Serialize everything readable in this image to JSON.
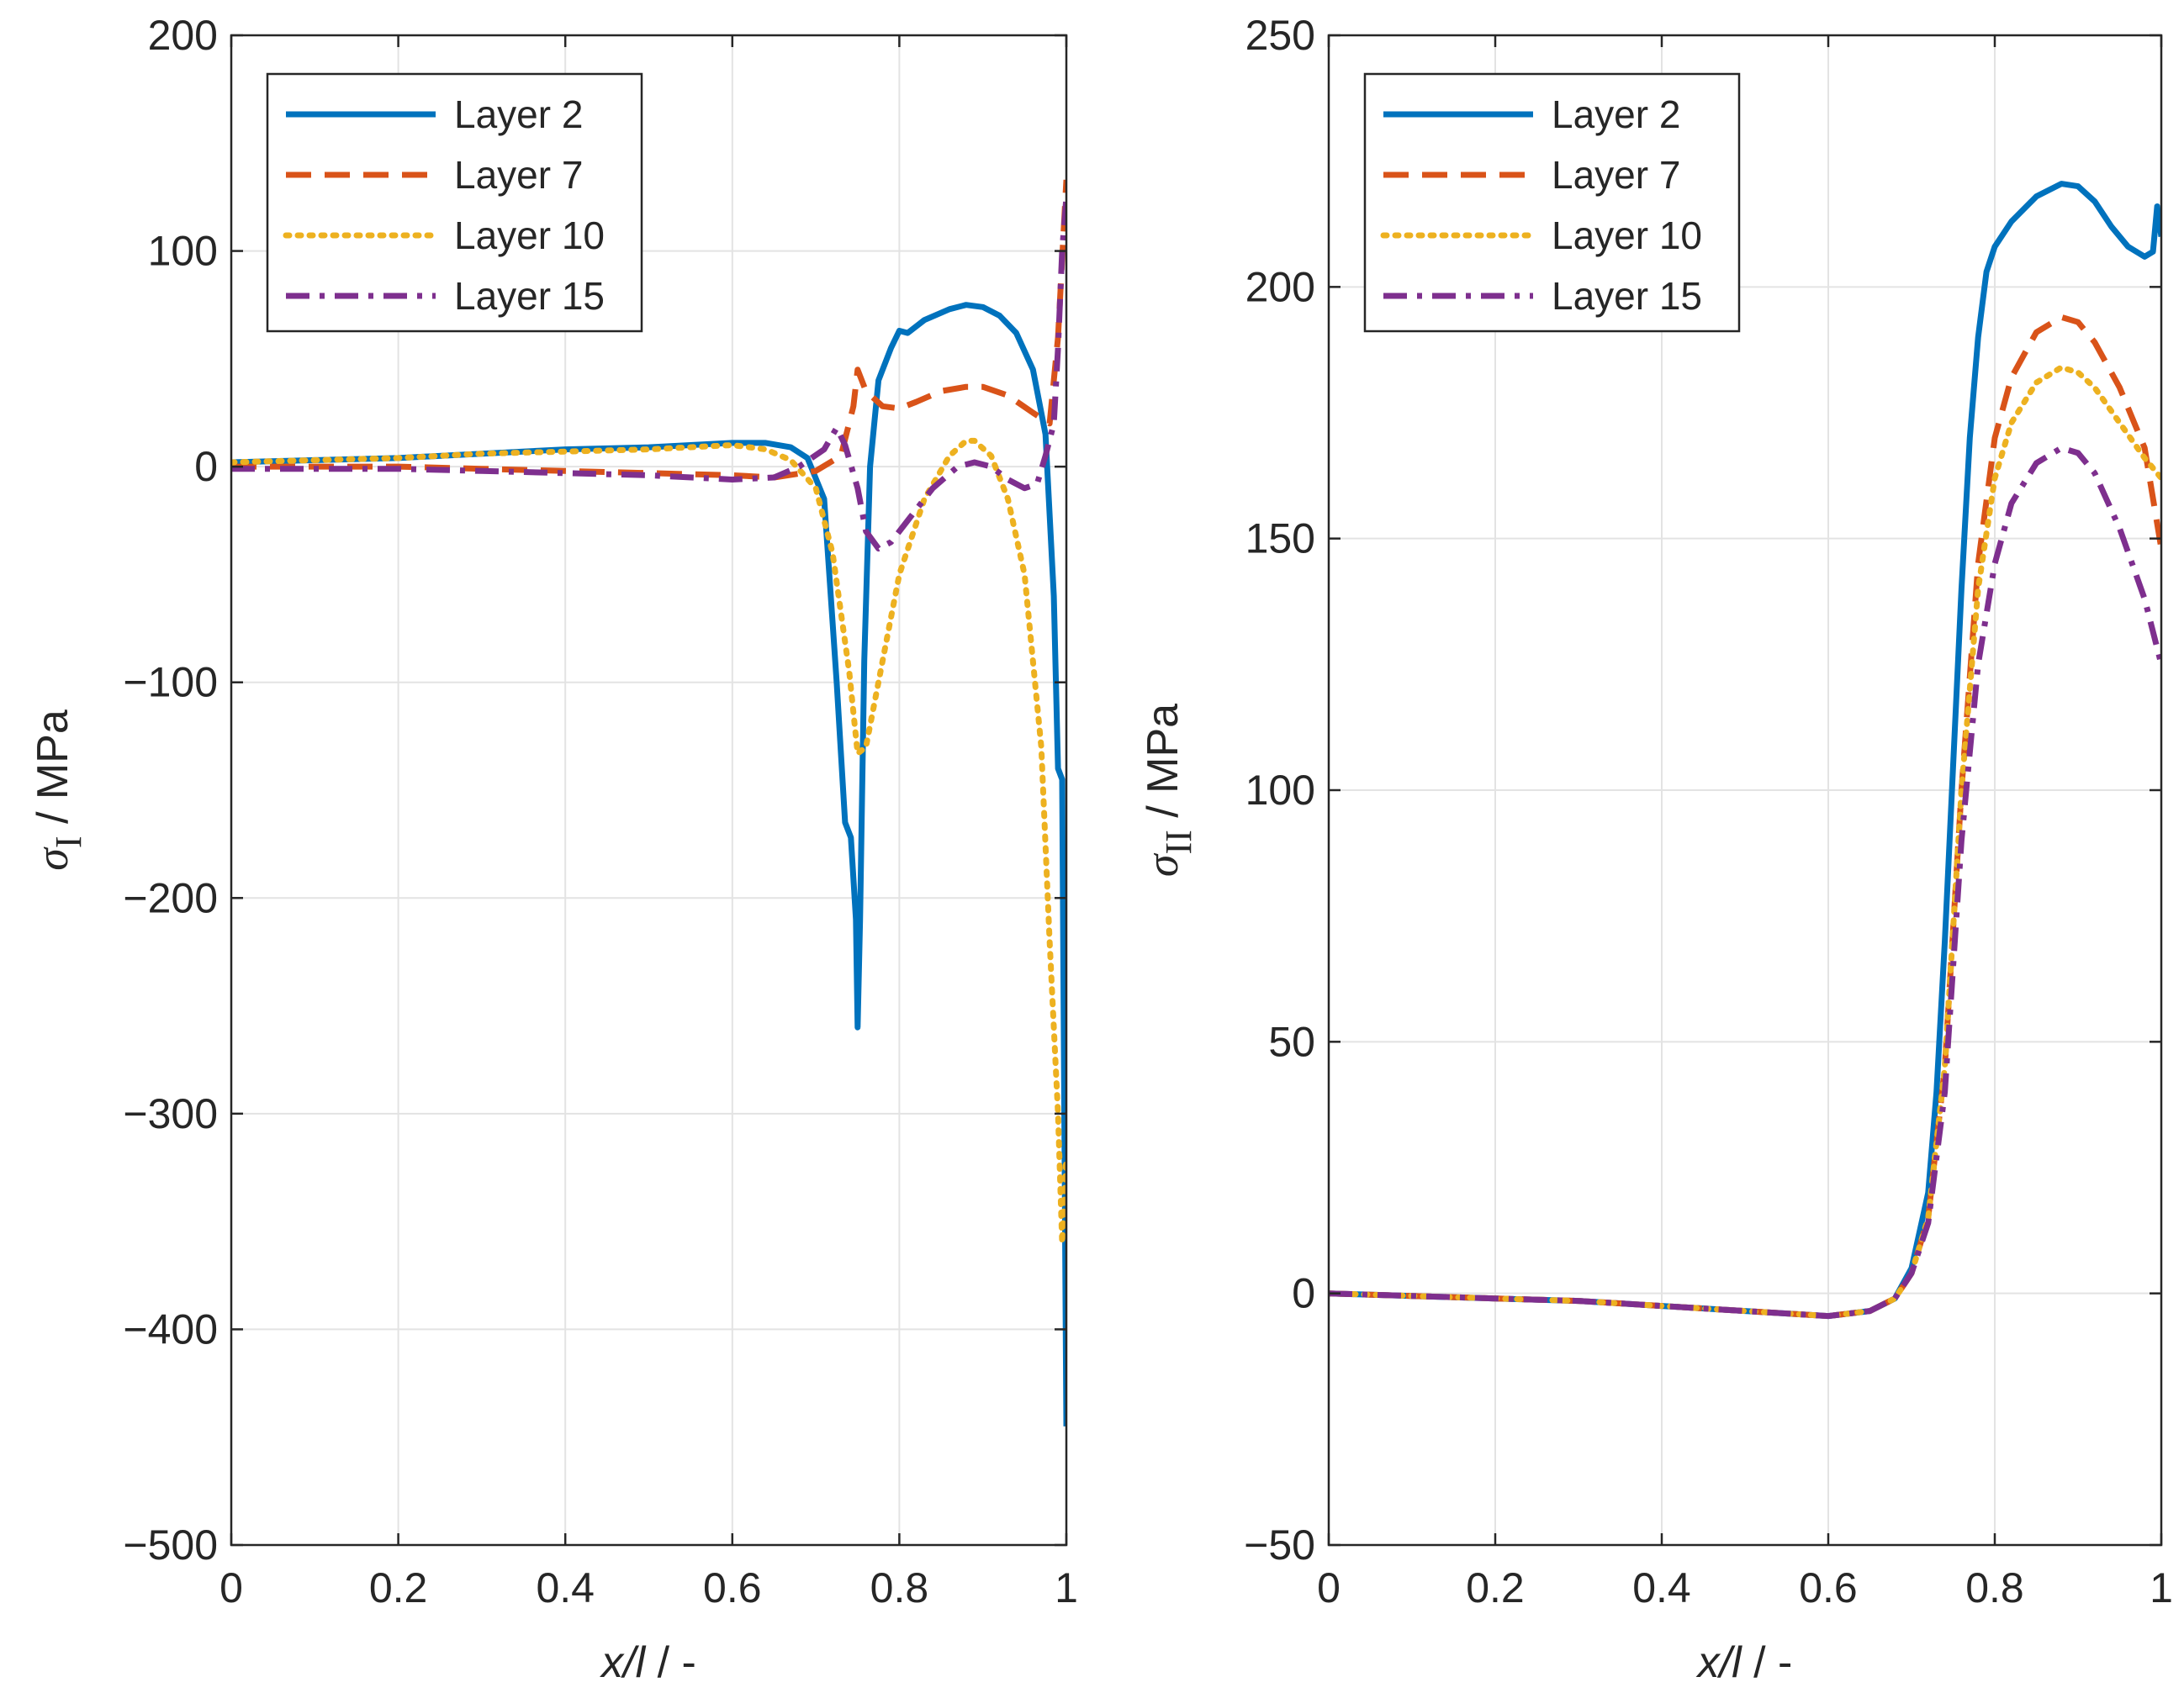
{
  "chart_data": [
    {
      "type": "line",
      "id": "left",
      "xlabel_var": "x/l",
      "xlabel_unit": " / -",
      "ylabel_symbol": "σ",
      "ylabel_sub": "I",
      "ylabel_unit": " / MPa",
      "xlim": [
        0,
        1
      ],
      "ylim": [
        -500,
        200
      ],
      "xticks": [
        0,
        0.2,
        0.4,
        0.6,
        0.8,
        1
      ],
      "xtick_labels": [
        "0",
        "0.2",
        "0.4",
        "0.6",
        "0.8",
        "1"
      ],
      "yticks": [
        -500,
        -400,
        -300,
        -200,
        -100,
        0,
        100,
        200
      ],
      "ytick_labels": [
        "−500",
        "−400",
        "−300",
        "−200",
        "−100",
        "0",
        "100",
        "200"
      ],
      "grid": true,
      "legend_position": "top-left",
      "series": [
        {
          "name": "Layer 2",
          "color": "#0072BD",
          "style": "solid",
          "points": [
            [
              0,
              2
            ],
            [
              0.1,
              3
            ],
            [
              0.2,
              4
            ],
            [
              0.3,
              6
            ],
            [
              0.4,
              8
            ],
            [
              0.5,
              9
            ],
            [
              0.6,
              11
            ],
            [
              0.64,
              11
            ],
            [
              0.67,
              9
            ],
            [
              0.69,
              4
            ],
            [
              0.71,
              -15
            ],
            [
              0.725,
              -100
            ],
            [
              0.735,
              -165
            ],
            [
              0.742,
              -172
            ],
            [
              0.748,
              -210
            ],
            [
              0.75,
              -260
            ],
            [
              0.753,
              -210
            ],
            [
              0.758,
              -90
            ],
            [
              0.765,
              0
            ],
            [
              0.775,
              40
            ],
            [
              0.79,
              55
            ],
            [
              0.8,
              63
            ],
            [
              0.81,
              62
            ],
            [
              0.83,
              68
            ],
            [
              0.86,
              73
            ],
            [
              0.88,
              75
            ],
            [
              0.9,
              74
            ],
            [
              0.92,
              70
            ],
            [
              0.94,
              62
            ],
            [
              0.96,
              45
            ],
            [
              0.975,
              15
            ],
            [
              0.985,
              -60
            ],
            [
              0.99,
              -140
            ],
            [
              0.995,
              -145
            ],
            [
              1.0,
              -445
            ]
          ]
        },
        {
          "name": "Layer 7",
          "color": "#D95319",
          "style": "dashed",
          "points": [
            [
              0,
              0
            ],
            [
              0.1,
              0
            ],
            [
              0.2,
              0
            ],
            [
              0.3,
              -1
            ],
            [
              0.4,
              -2
            ],
            [
              0.5,
              -3
            ],
            [
              0.6,
              -4
            ],
            [
              0.65,
              -5
            ],
            [
              0.7,
              -2
            ],
            [
              0.73,
              5
            ],
            [
              0.745,
              28
            ],
            [
              0.75,
              45
            ],
            [
              0.76,
              35
            ],
            [
              0.78,
              28
            ],
            [
              0.8,
              27
            ],
            [
              0.82,
              30
            ],
            [
              0.85,
              35
            ],
            [
              0.88,
              37
            ],
            [
              0.9,
              37
            ],
            [
              0.93,
              33
            ],
            [
              0.96,
              25
            ],
            [
              0.98,
              20
            ],
            [
              0.99,
              60
            ],
            [
              1.0,
              133
            ]
          ]
        },
        {
          "name": "Layer 10",
          "color": "#EDB120",
          "style": "dotted",
          "points": [
            [
              0,
              2
            ],
            [
              0.1,
              3
            ],
            [
              0.2,
              4
            ],
            [
              0.3,
              6
            ],
            [
              0.4,
              7
            ],
            [
              0.5,
              8
            ],
            [
              0.6,
              10
            ],
            [
              0.64,
              8
            ],
            [
              0.67,
              3
            ],
            [
              0.7,
              -10
            ],
            [
              0.72,
              -40
            ],
            [
              0.74,
              -95
            ],
            [
              0.75,
              -133
            ],
            [
              0.76,
              -130
            ],
            [
              0.78,
              -90
            ],
            [
              0.8,
              -50
            ],
            [
              0.83,
              -15
            ],
            [
              0.86,
              5
            ],
            [
              0.88,
              12
            ],
            [
              0.89,
              12
            ],
            [
              0.91,
              5
            ],
            [
              0.93,
              -15
            ],
            [
              0.95,
              -50
            ],
            [
              0.97,
              -130
            ],
            [
              0.98,
              -220
            ],
            [
              0.99,
              -300
            ],
            [
              0.995,
              -360
            ],
            [
              1.0,
              -320
            ]
          ]
        },
        {
          "name": "Layer 15",
          "color": "#7E2F8E",
          "style": "dashdot",
          "points": [
            [
              0,
              -1
            ],
            [
              0.1,
              -1
            ],
            [
              0.2,
              -1
            ],
            [
              0.3,
              -2
            ],
            [
              0.4,
              -3
            ],
            [
              0.5,
              -4
            ],
            [
              0.6,
              -6
            ],
            [
              0.65,
              -5
            ],
            [
              0.68,
              0
            ],
            [
              0.71,
              8
            ],
            [
              0.725,
              18
            ],
            [
              0.735,
              10
            ],
            [
              0.75,
              -10
            ],
            [
              0.76,
              -30
            ],
            [
              0.775,
              -38
            ],
            [
              0.79,
              -35
            ],
            [
              0.81,
              -25
            ],
            [
              0.84,
              -10
            ],
            [
              0.87,
              0
            ],
            [
              0.89,
              2
            ],
            [
              0.91,
              0
            ],
            [
              0.93,
              -6
            ],
            [
              0.95,
              -10
            ],
            [
              0.965,
              -8
            ],
            [
              0.975,
              5
            ],
            [
              0.985,
              20
            ],
            [
              0.99,
              55
            ],
            [
              0.995,
              100
            ],
            [
              1.0,
              125
            ]
          ]
        }
      ]
    },
    {
      "type": "line",
      "id": "right",
      "xlabel_var": "x/l",
      "xlabel_unit": " / -",
      "ylabel_symbol": "σ",
      "ylabel_sub": "II",
      "ylabel_unit": " / MPa",
      "xlim": [
        0,
        1
      ],
      "ylim": [
        -50,
        250
      ],
      "xticks": [
        0,
        0.2,
        0.4,
        0.6,
        0.8,
        1
      ],
      "xtick_labels": [
        "0",
        "0.2",
        "0.4",
        "0.6",
        "0.8",
        "1"
      ],
      "yticks": [
        -50,
        0,
        50,
        100,
        150,
        200,
        250
      ],
      "ytick_labels": [
        "−50",
        "0",
        "50",
        "100",
        "150",
        "200",
        "250"
      ],
      "grid": true,
      "legend_position": "top-left",
      "series": [
        {
          "name": "Layer 2",
          "color": "#0072BD",
          "style": "solid",
          "points": [
            [
              0,
              0
            ],
            [
              0.1,
              -0.5
            ],
            [
              0.2,
              -1
            ],
            [
              0.3,
              -1.5
            ],
            [
              0.4,
              -2.5
            ],
            [
              0.5,
              -3.5
            ],
            [
              0.6,
              -4.5
            ],
            [
              0.65,
              -3.5
            ],
            [
              0.68,
              -1
            ],
            [
              0.7,
              5
            ],
            [
              0.72,
              20
            ],
            [
              0.73,
              40
            ],
            [
              0.74,
              70
            ],
            [
              0.75,
              105
            ],
            [
              0.76,
              140
            ],
            [
              0.77,
              170
            ],
            [
              0.78,
              190
            ],
            [
              0.79,
              203
            ],
            [
              0.8,
              208
            ],
            [
              0.82,
              213
            ],
            [
              0.85,
              218
            ],
            [
              0.88,
              220.5
            ],
            [
              0.9,
              220
            ],
            [
              0.92,
              217
            ],
            [
              0.94,
              212
            ],
            [
              0.96,
              208
            ],
            [
              0.98,
              206
            ],
            [
              0.99,
              207
            ],
            [
              0.995,
              216
            ],
            [
              1.0,
              210
            ]
          ]
        },
        {
          "name": "Layer 7",
          "color": "#D95319",
          "style": "dashed",
          "points": [
            [
              0,
              0
            ],
            [
              0.1,
              -0.5
            ],
            [
              0.2,
              -1
            ],
            [
              0.3,
              -1.5
            ],
            [
              0.4,
              -2.5
            ],
            [
              0.5,
              -3.5
            ],
            [
              0.6,
              -4.5
            ],
            [
              0.65,
              -3.5
            ],
            [
              0.68,
              -1
            ],
            [
              0.7,
              4
            ],
            [
              0.72,
              15
            ],
            [
              0.74,
              45
            ],
            [
              0.76,
              100
            ],
            [
              0.78,
              145
            ],
            [
              0.8,
              170
            ],
            [
              0.82,
              182
            ],
            [
              0.85,
              191
            ],
            [
              0.88,
              194
            ],
            [
              0.9,
              193
            ],
            [
              0.92,
              189
            ],
            [
              0.95,
              180
            ],
            [
              0.98,
              168
            ],
            [
              1.0,
              148
            ]
          ]
        },
        {
          "name": "Layer 10",
          "color": "#EDB120",
          "style": "dotted",
          "points": [
            [
              0,
              0
            ],
            [
              0.1,
              -0.5
            ],
            [
              0.2,
              -1
            ],
            [
              0.3,
              -1.5
            ],
            [
              0.4,
              -2.5
            ],
            [
              0.5,
              -3.5
            ],
            [
              0.6,
              -4.5
            ],
            [
              0.65,
              -3.5
            ],
            [
              0.68,
              -1
            ],
            [
              0.7,
              4
            ],
            [
              0.72,
              15
            ],
            [
              0.74,
              45
            ],
            [
              0.76,
              100
            ],
            [
              0.78,
              140
            ],
            [
              0.8,
              162
            ],
            [
              0.82,
              173
            ],
            [
              0.85,
              181
            ],
            [
              0.88,
              184
            ],
            [
              0.9,
              183
            ],
            [
              0.92,
              180
            ],
            [
              0.95,
              173
            ],
            [
              0.98,
              166
            ],
            [
              1.0,
              162
            ]
          ]
        },
        {
          "name": "Layer 15",
          "color": "#7E2F8E",
          "style": "dashdot",
          "points": [
            [
              0,
              0
            ],
            [
              0.1,
              -0.5
            ],
            [
              0.2,
              -1
            ],
            [
              0.3,
              -1.5
            ],
            [
              0.4,
              -2.5
            ],
            [
              0.5,
              -3.5
            ],
            [
              0.6,
              -4.5
            ],
            [
              0.65,
              -3.5
            ],
            [
              0.68,
              -1
            ],
            [
              0.7,
              4
            ],
            [
              0.72,
              14
            ],
            [
              0.74,
              40
            ],
            [
              0.76,
              90
            ],
            [
              0.78,
              125
            ],
            [
              0.8,
              145
            ],
            [
              0.82,
              157
            ],
            [
              0.85,
              165
            ],
            [
              0.88,
              168
            ],
            [
              0.9,
              167
            ],
            [
              0.92,
              163
            ],
            [
              0.95,
              152
            ],
            [
              0.98,
              138
            ],
            [
              1.0,
              125
            ]
          ]
        }
      ]
    }
  ]
}
